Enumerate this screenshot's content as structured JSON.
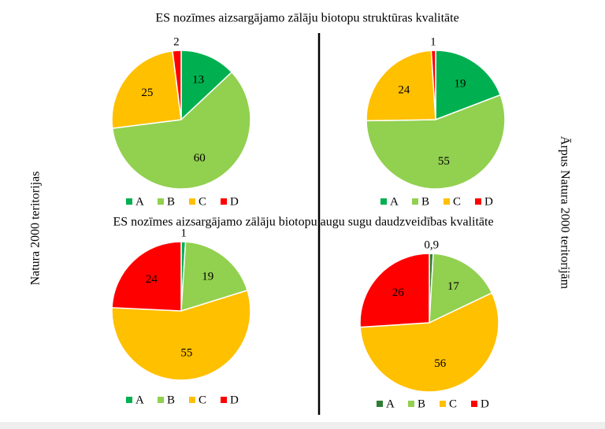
{
  "row_titles": [
    "ES nozīmes aizsargājamo zālāju biotopu struktūras kvalitāte",
    "ES nozīmes aizsargājamo zālāju biotopu augu sugu daudzveidības kvalitāte"
  ],
  "side_labels": [
    "Natura 2000 teritorijas",
    "Ārpus Natura 2000 teritorijām"
  ],
  "chart_data": [
    {
      "type": "pie",
      "categories": [
        "A",
        "B",
        "C",
        "D"
      ],
      "values": [
        13,
        60,
        25,
        2
      ],
      "colors": [
        "#00b050",
        "#92d050",
        "#ffc000",
        "#ff0000"
      ]
    },
    {
      "type": "pie",
      "categories": [
        "A",
        "B",
        "C",
        "D"
      ],
      "values": [
        19,
        55,
        24,
        1
      ],
      "colors": [
        "#00b050",
        "#92d050",
        "#ffc000",
        "#ff0000"
      ]
    },
    {
      "type": "pie",
      "categories": [
        "A",
        "B",
        "C",
        "D"
      ],
      "values": [
        1,
        19,
        55,
        24
      ],
      "colors": [
        "#00b050",
        "#92d050",
        "#ffc000",
        "#ff0000"
      ]
    },
    {
      "type": "pie",
      "categories": [
        "A",
        "B",
        "C",
        "D"
      ],
      "values": [
        0.9,
        17,
        56,
        26
      ],
      "value_labels": [
        "0,9",
        "17",
        "56",
        "26"
      ],
      "colors": [
        "#2e7d32",
        "#92d050",
        "#ffc000",
        "#ff0000"
      ]
    }
  ]
}
